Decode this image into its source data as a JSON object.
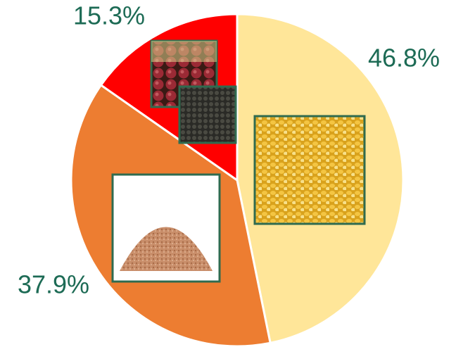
{
  "chart_data": {
    "type": "pie",
    "values": [
      46.8,
      37.9,
      15.3
    ],
    "value_labels": [
      "46.8%",
      "37.9%",
      "15.3%"
    ],
    "colors": [
      "#ffe699",
      "#ed7d31",
      "#ff0000"
    ]
  }
}
